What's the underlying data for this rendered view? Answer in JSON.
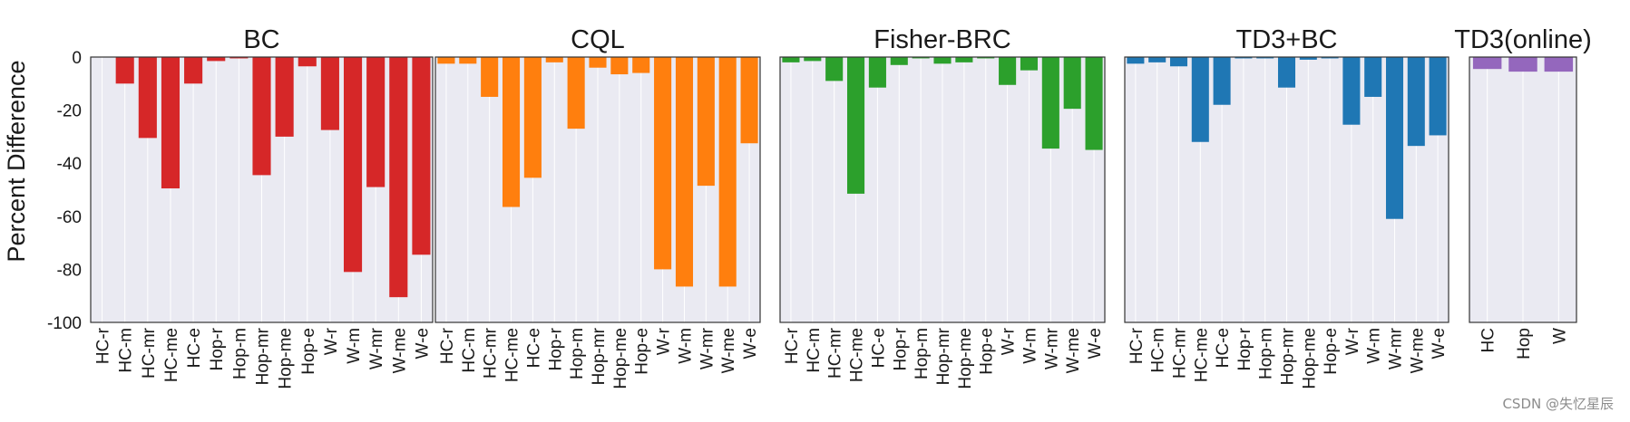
{
  "ylabel": "Percent Difference",
  "ylim": [
    -100,
    0
  ],
  "yticks": [
    0,
    -20,
    -40,
    -60,
    -80,
    -100
  ],
  "watermark": "CSDN @失忆星辰",
  "chart_data": [
    {
      "type": "bar",
      "title": "BC",
      "color": "#d62728",
      "categories": [
        "HC-r",
        "HC-m",
        "HC-mr",
        "HC-me",
        "HC-e",
        "Hop-r",
        "Hop-m",
        "Hop-mr",
        "Hop-me",
        "Hop-e",
        "W-r",
        "W-m",
        "W-mr",
        "W-me",
        "W-e"
      ],
      "values": [
        0,
        -10,
        -30.5,
        -49.5,
        -10,
        -1.5,
        -0.5,
        -44.5,
        -30,
        -3.5,
        -27.5,
        -81,
        -49,
        -90.5,
        -74.5
      ]
    },
    {
      "type": "bar",
      "title": "CQL",
      "color": "#ff7f0e",
      "categories": [
        "HC-r",
        "HC-m",
        "HC-mr",
        "HC-me",
        "HC-e",
        "Hop-r",
        "Hop-m",
        "Hop-mr",
        "Hop-me",
        "Hop-e",
        "W-r",
        "W-m",
        "W-mr",
        "W-me",
        "W-e"
      ],
      "values": [
        -2.5,
        -2.5,
        -15,
        -56.5,
        -45.5,
        -2,
        -27,
        -4,
        -6.5,
        -6,
        -80,
        -86.5,
        -48.5,
        -86.5,
        -32.5
      ]
    },
    {
      "type": "bar",
      "title": "Fisher-BRC",
      "color": "#2ca02c",
      "categories": [
        "HC-r",
        "HC-m",
        "HC-mr",
        "HC-me",
        "HC-e",
        "Hop-r",
        "Hop-m",
        "Hop-mr",
        "Hop-me",
        "Hop-e",
        "W-r",
        "W-m",
        "W-mr",
        "W-me",
        "W-e"
      ],
      "values": [
        -2,
        -1.5,
        -9,
        -51.5,
        -11.5,
        -3,
        -0.5,
        -2.5,
        -2,
        -0.5,
        -10.5,
        -5,
        -34.5,
        -19.5,
        -35
      ]
    },
    {
      "type": "bar",
      "title": "TD3+BC",
      "color": "#1f77b4",
      "categories": [
        "HC-r",
        "HC-m",
        "HC-mr",
        "HC-me",
        "HC-e",
        "Hop-r",
        "Hop-m",
        "Hop-mr",
        "Hop-me",
        "Hop-e",
        "W-r",
        "W-m",
        "W-mr",
        "W-me",
        "W-e"
      ],
      "values": [
        -2.5,
        -2,
        -3.5,
        -32,
        -18,
        -0.5,
        -0.5,
        -11.5,
        -1,
        -0.5,
        -25.5,
        -15,
        -61,
        -33.5,
        -29.5
      ]
    },
    {
      "type": "bar",
      "title": "TD3(online)",
      "color": "#9467bd",
      "categories": [
        "HC",
        "Hop",
        "W"
      ],
      "values": [
        -4.5,
        -5.5,
        -5.5
      ]
    }
  ]
}
